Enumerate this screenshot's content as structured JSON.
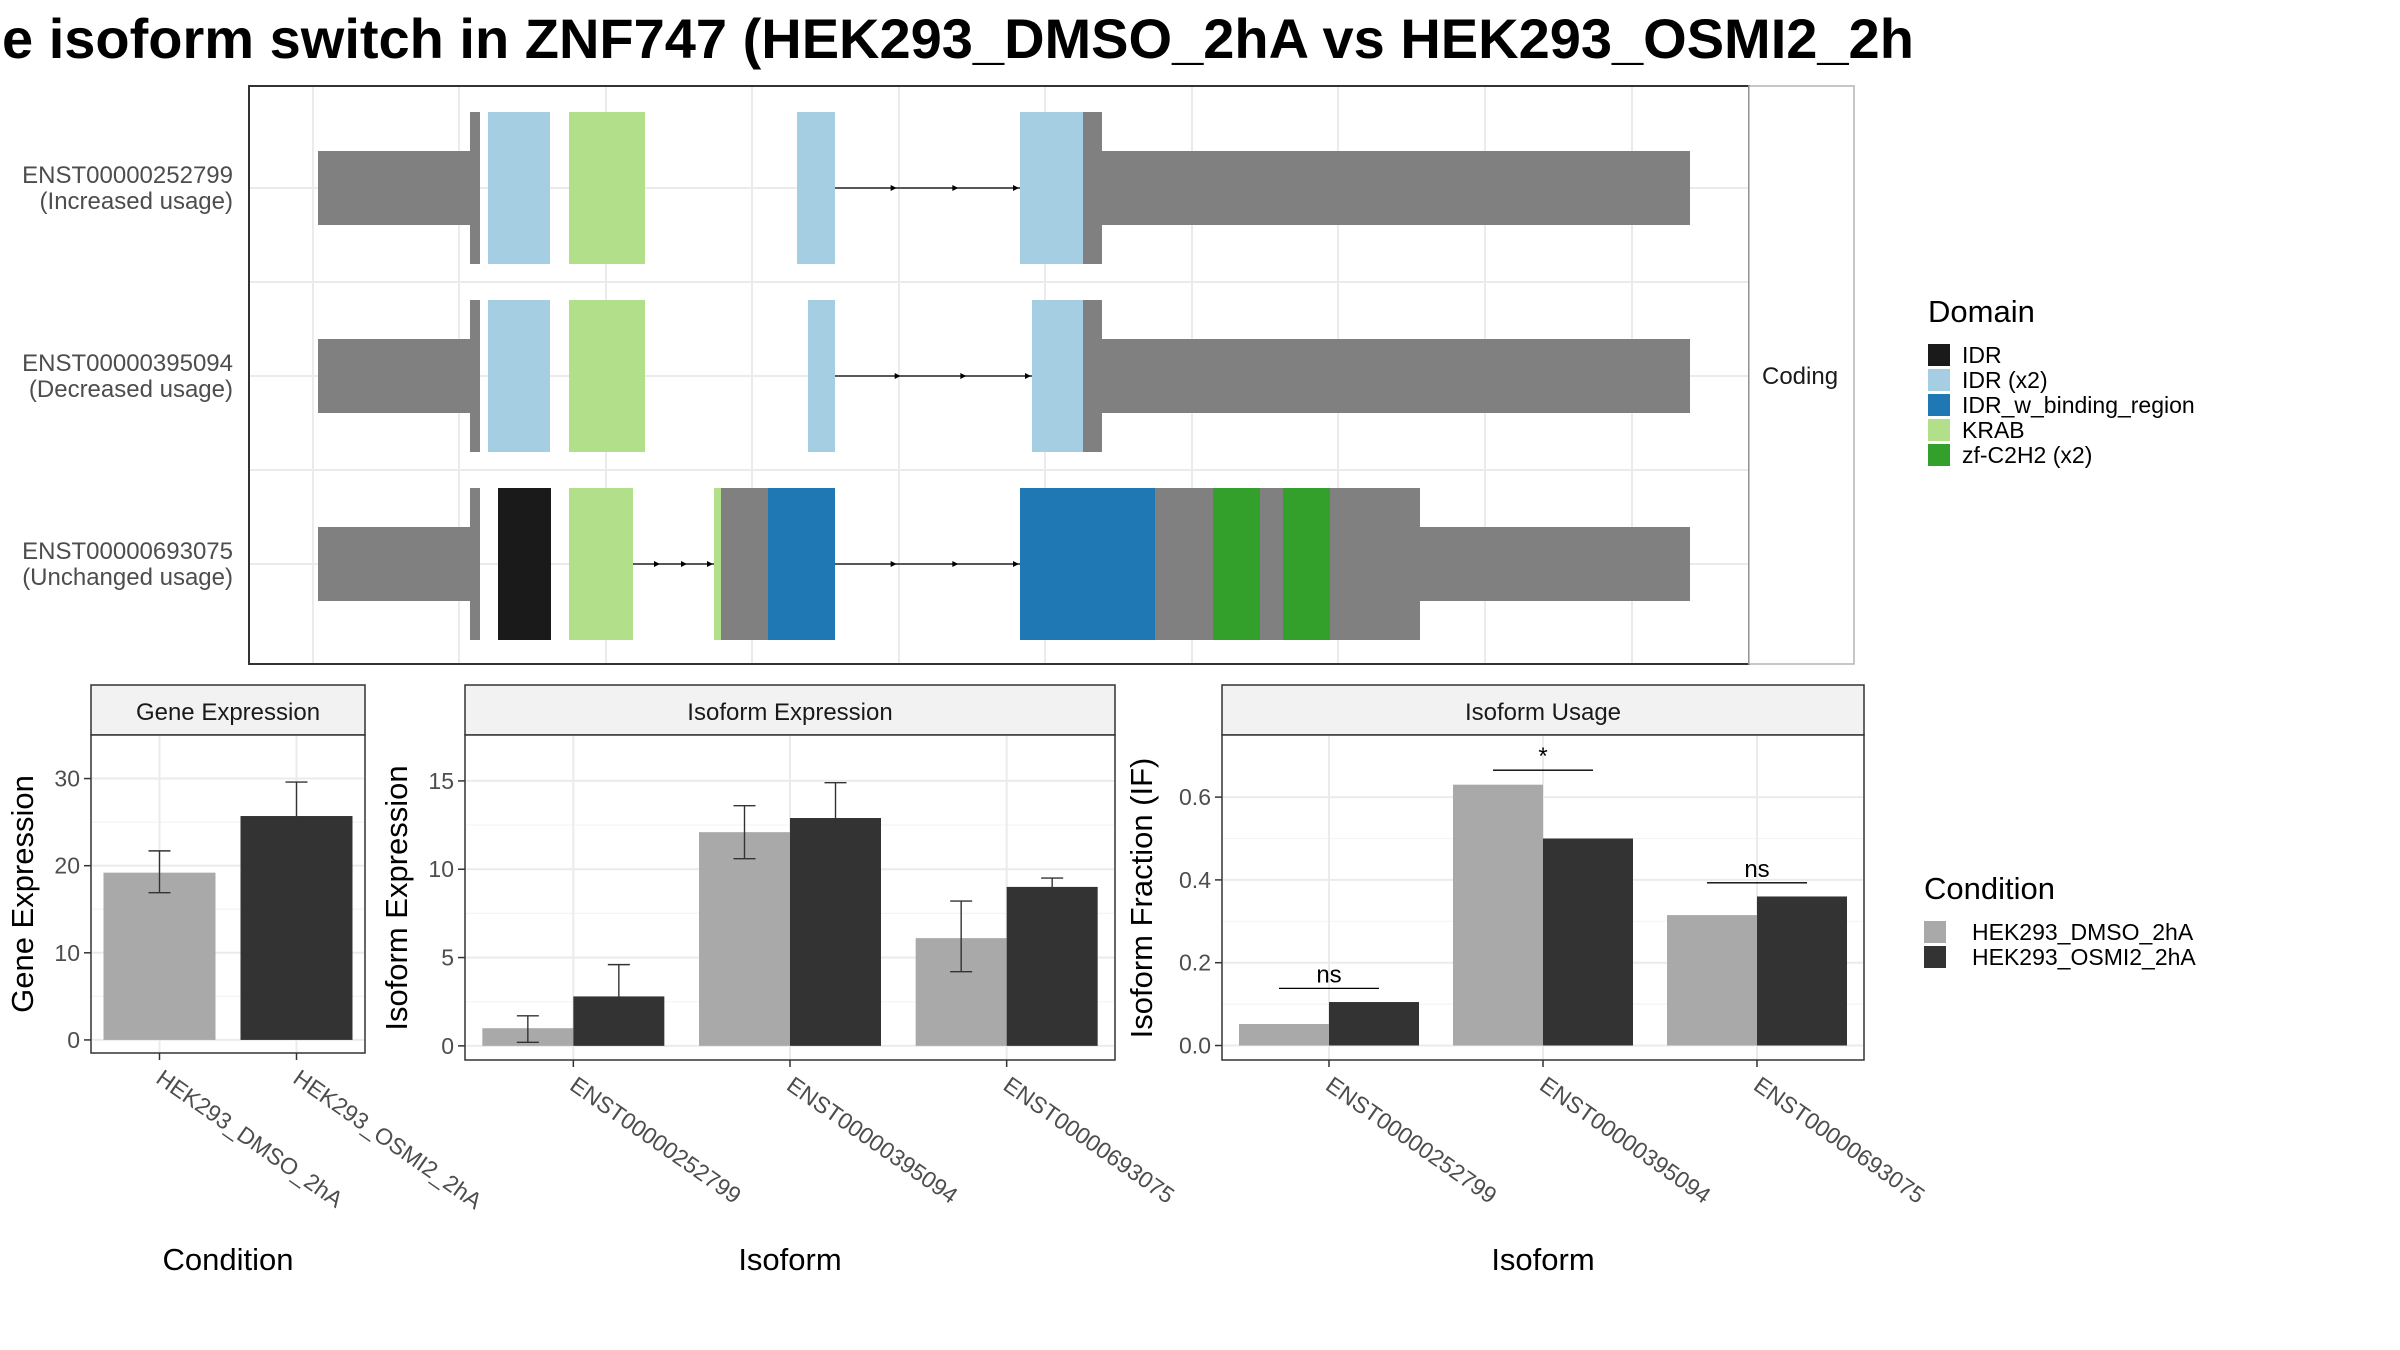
{
  "title": "e isoform switch in ZNF747 (HEK293_DMSO_2hA vs HEK293_OSMI2_2h",
  "colors": {
    "exon": "#808080",
    "IDR": "#1a1a1a",
    "IDR (x2)": "#a6cee3",
    "IDR_w_binding_region": "#1f78b4",
    "KRAB": "#b2df8a",
    "zf-C2H2 (x2)": "#33a02c",
    "cond1": "#a9a9a9",
    "cond2": "#333333"
  },
  "chart_data": [
    {
      "type": "diagram",
      "facet_label": "Coding",
      "isoforms": [
        {
          "id": "ENST00000252799",
          "usage": "(Increased usage)"
        },
        {
          "id": "ENST00000395094",
          "usage": "(Decreased usage)"
        },
        {
          "id": "ENST00000693075",
          "usage": "(Unchanged usage)"
        }
      ],
      "legend": {
        "title": "Domain",
        "entries": [
          "IDR",
          "IDR (x2)",
          "IDR_w_binding_region",
          "KRAB",
          "zf-C2H2 (x2)"
        ]
      }
    },
    {
      "type": "bar",
      "panel_title": "Gene Expression",
      "xlabel": "Condition",
      "ylabel": "Gene Expression",
      "ylim": [
        -1.5,
        35
      ],
      "yticks": [
        0,
        10,
        20,
        30
      ],
      "categories": [
        "HEK293_DMSO_2hA",
        "HEK293_OSMI2_2hA"
      ],
      "values": [
        19.2,
        25.7
      ],
      "error": [
        [
          16.9,
          21.7
        ],
        [
          21.8,
          29.6
        ]
      ]
    },
    {
      "type": "bar",
      "panel_title": "Isoform Expression",
      "xlabel": "Isoform",
      "ylabel": "Isoform Expression",
      "ylim": [
        -0.8,
        17.6
      ],
      "yticks": [
        0,
        5,
        10,
        15
      ],
      "categories": [
        "ENST00000252799",
        "ENST00000395094",
        "ENST00000693075"
      ],
      "series": [
        {
          "name": "HEK293_DMSO_2hA",
          "values": [
            1.0,
            12.1,
            6.1
          ],
          "error": [
            [
              0.2,
              1.7
            ],
            [
              10.6,
              13.6
            ],
            [
              4.2,
              8.2
            ]
          ]
        },
        {
          "name": "HEK293_OSMI2_2hA",
          "values": [
            2.8,
            12.9,
            9.0
          ],
          "error": [
            [
              1.0,
              4.6
            ],
            [
              10.9,
              14.9
            ],
            [
              8.6,
              9.5
            ]
          ]
        }
      ]
    },
    {
      "type": "bar",
      "panel_title": "Isoform Usage",
      "xlabel": "Isoform",
      "ylabel": "Isoform Fraction (IF)",
      "ylim": [
        -0.035,
        0.75
      ],
      "yticks": [
        0.0,
        0.2,
        0.4,
        0.6
      ],
      "categories": [
        "ENST00000252799",
        "ENST00000395094",
        "ENST00000693075"
      ],
      "series": [
        {
          "name": "HEK293_DMSO_2hA",
          "values": [
            0.052,
            0.63,
            0.315
          ]
        },
        {
          "name": "HEK293_OSMI2_2hA",
          "values": [
            0.105,
            0.5,
            0.36
          ]
        }
      ],
      "significance": [
        "ns",
        "*",
        "ns"
      ],
      "sig_y": [
        0.138,
        0.665,
        0.393
      ]
    }
  ],
  "condition_legend": {
    "title": "Condition",
    "entries": [
      "HEK293_DMSO_2hA",
      "HEK293_OSMI2_2hA"
    ]
  }
}
